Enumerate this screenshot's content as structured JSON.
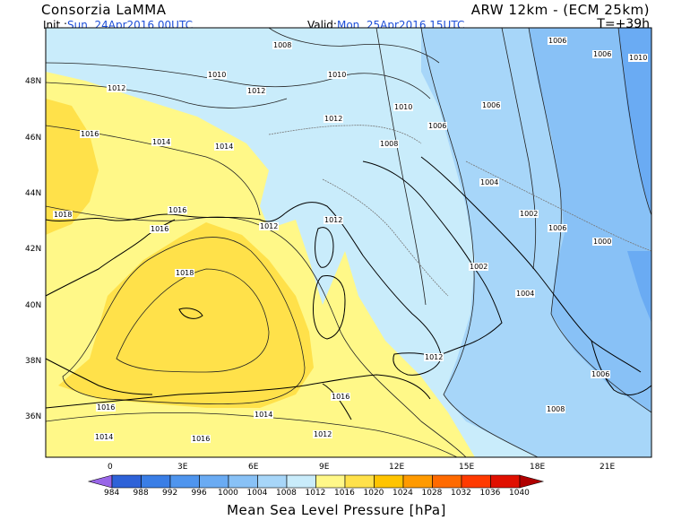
{
  "header": {
    "organization": "Consorzia LaMMA",
    "model": "ARW 12km - (ECM 25km)",
    "init_label": "Init.:",
    "init_value": "Sun, 24Apr2016 00UTC",
    "valid_label": "Valid:",
    "valid_value": "Mon, 25Apr2016 15UTC",
    "forecast_step": "T=+39h"
  },
  "map": {
    "latitude_labels": [
      "48N",
      "46N",
      "44N",
      "42N",
      "40N",
      "38N",
      "36N"
    ],
    "longitude_labels": [
      "0",
      "3E",
      "6E",
      "9E",
      "12E",
      "15E",
      "18E",
      "21E"
    ],
    "isobar_labels": [
      "1008",
      "1010",
      "1010",
      "1012",
      "1012",
      "1012",
      "1016",
      "1014",
      "1014",
      "1016",
      "1018",
      "1016",
      "1012",
      "1012",
      "1018",
      "1016",
      "1014",
      "1014",
      "1016",
      "1016",
      "1012",
      "1010",
      "1008",
      "1006",
      "1006",
      "1004",
      "1002",
      "1006",
      "1006",
      "1006",
      "1008",
      "1004",
      "1002",
      "1000",
      "1006",
      "1012",
      "1010"
    ]
  },
  "legend": {
    "title": "Mean Sea Level Pressure [hPa]",
    "ticks": [
      "984",
      "988",
      "992",
      "996",
      "1000",
      "1004",
      "1008",
      "1012",
      "1016",
      "1020",
      "1024",
      "1028",
      "1032",
      "1036",
      "1040"
    ],
    "colors": [
      "#9966e8",
      "#2e62d8",
      "#3a7ee6",
      "#4f95ee",
      "#6aabf3",
      "#88c1f6",
      "#a7d6f9",
      "#c9ecfb",
      "#fff888",
      "#ffe14a",
      "#ffc400",
      "#ff9a00",
      "#ff6a00",
      "#ff3a00",
      "#e01000",
      "#b00000"
    ]
  },
  "fields": {
    "pressure_zones_hPa": [
      "1000-1004",
      "1004-1008",
      "1008-1012",
      "1012-1016",
      "1016-1020"
    ]
  }
}
